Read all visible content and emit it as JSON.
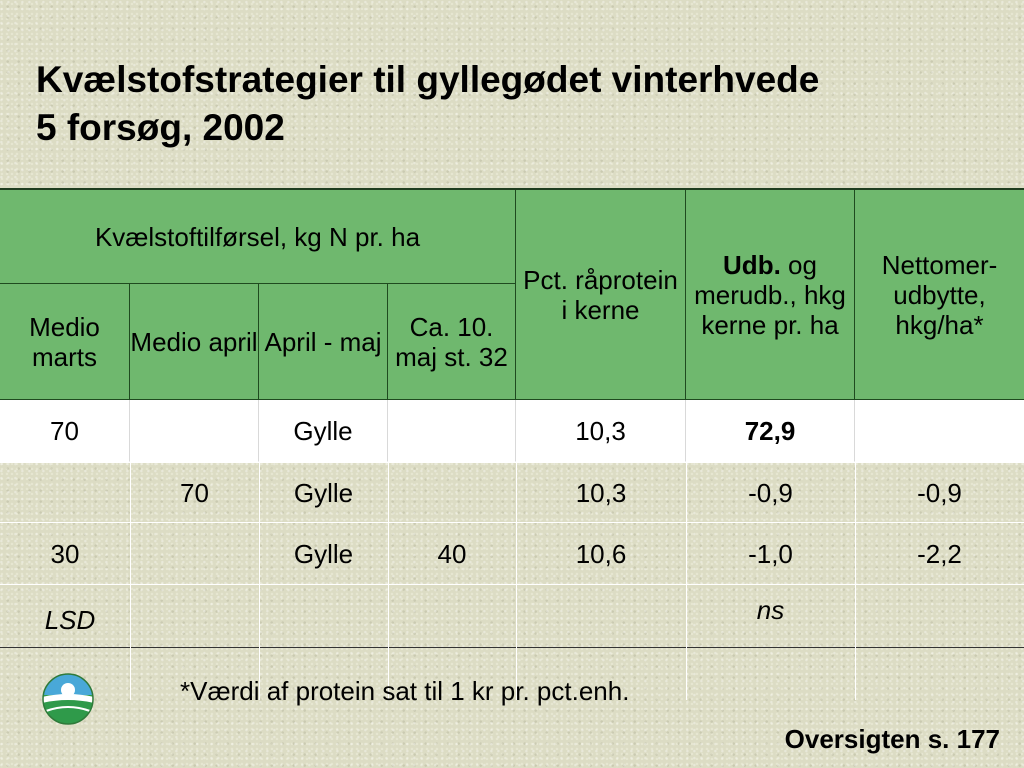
{
  "title": {
    "line1": "Kvælstofstrategier til gyllegødet vinterhvede",
    "line2": "5 forsøg, 2002"
  },
  "table": {
    "group_header": "Kvælstoftilførsel, kg N pr. ha",
    "sub_headers": [
      "Medio marts",
      "Medio april",
      "April - maj",
      "Ca. 10. maj st. 32"
    ],
    "protein_header": "Pct. råprotein i kerne",
    "yield_header_bold": "Udb.",
    "yield_header_rest": "og merudb., hkg kerne pr. ha",
    "net_header": "Nettomer-udbytte, hkg/ha*",
    "rows": [
      {
        "marts": "70",
        "april": "",
        "aprilmaj": "Gylle",
        "maj": "",
        "protein": "10,3",
        "yield": "72,9",
        "net": ""
      },
      {
        "marts": "",
        "april": "70",
        "aprilmaj": "Gylle",
        "maj": "",
        "protein": "10,3",
        "yield": "-0,9",
        "net": "-0,9"
      },
      {
        "marts": "30",
        "april": "",
        "aprilmaj": "Gylle",
        "maj": "40",
        "protein": "10,6",
        "yield": "-1,0",
        "net": "-2,2"
      },
      {
        "marts": "LSD",
        "april": "",
        "aprilmaj": "",
        "maj": "",
        "protein": "",
        "yield": "ns",
        "net": ""
      }
    ]
  },
  "footnote": "*Værdi af protein sat til 1 kr pr. pct.enh.",
  "source": "Oversigten s. 177",
  "logo_icon": "globe-logo-icon",
  "colors": {
    "header_green": "#6fb86e",
    "background": "#dcdcc4"
  }
}
